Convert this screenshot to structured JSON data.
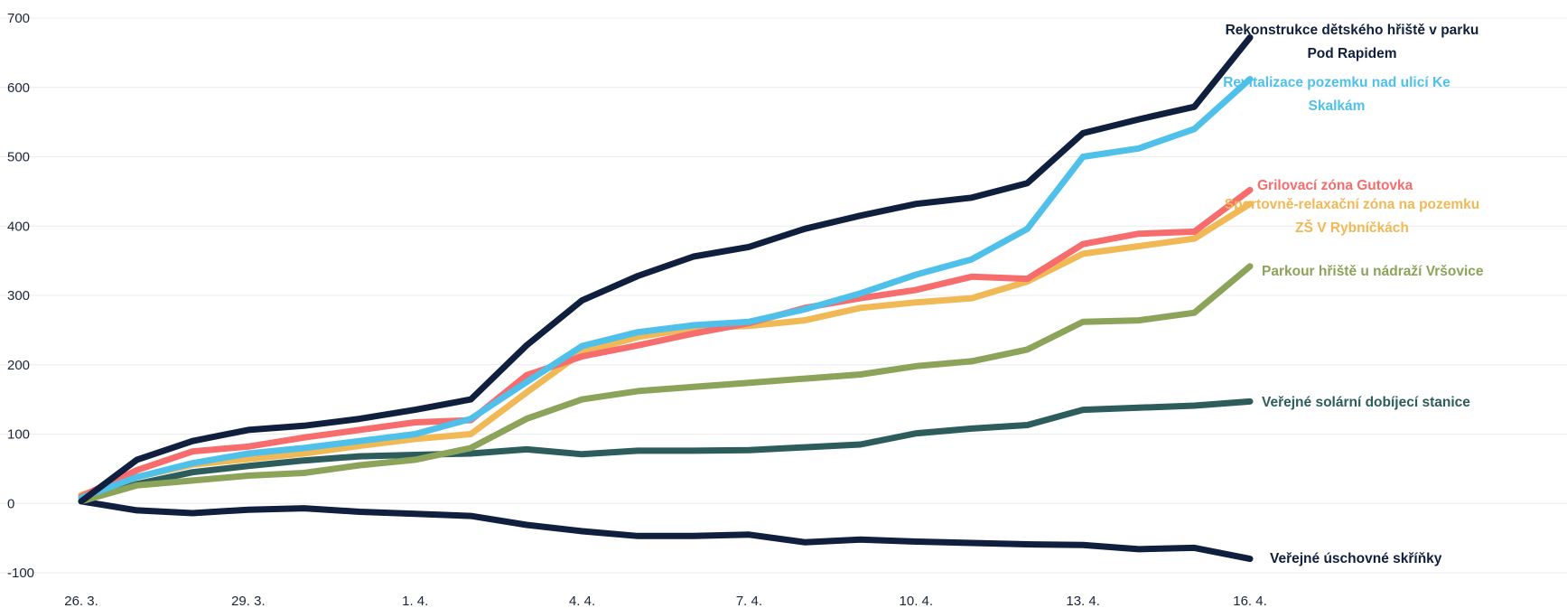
{
  "chart_data": {
    "type": "line",
    "title": "",
    "xlabel": "",
    "ylabel": "",
    "x": [
      "26. 3.",
      "27. 3.",
      "28. 3.",
      "29. 3.",
      "30. 3.",
      "31. 3.",
      "1. 4.",
      "2. 4.",
      "3. 4.",
      "4. 4.",
      "5. 4.",
      "6. 4.",
      "7. 4.",
      "8. 4.",
      "9. 4.",
      "10. 4.",
      "11. 4.",
      "12. 4.",
      "13. 4.",
      "14. 4.",
      "15. 4.",
      "16. 4."
    ],
    "x_tick_labels": [
      "26. 3.",
      "29. 3.",
      "1. 4.",
      "4. 4.",
      "7. 4.",
      "10. 4.",
      "13. 4.",
      "16. 4."
    ],
    "y_ticks": [
      -100,
      0,
      100,
      200,
      300,
      400,
      500,
      600,
      700
    ],
    "ylim": [
      -100,
      700
    ],
    "grid": true,
    "legend": "right",
    "series": [
      {
        "name": "Rekonstrukce dětského hřiště v parku Pod Rapidem",
        "label_lines": [
          "Rekonstrukce dětského hřiště v parku",
          "Pod Rapidem"
        ],
        "color": "#0f1f3d",
        "values": [
          3,
          63,
          90,
          106,
          112,
          122,
          135,
          150,
          228,
          293,
          328,
          356,
          370,
          396,
          415,
          432,
          441,
          462,
          534,
          554,
          572,
          672
        ]
      },
      {
        "name": "Revitalizace pozemku nad ulicí Ke Skalkám",
        "label_lines": [
          "Revitalizace pozemku nad ulicí Ke",
          "Skalkám"
        ],
        "color": "#4fc0ea",
        "values": [
          8,
          38,
          58,
          72,
          80,
          90,
          100,
          122,
          175,
          227,
          247,
          257,
          262,
          280,
          303,
          330,
          352,
          396,
          500,
          512,
          540,
          612
        ]
      },
      {
        "name": "Grilovací zóna Gutovka",
        "label_lines": [
          "Grilovací zóna Gutovka"
        ],
        "color": "#f76c6c",
        "values": [
          10,
          48,
          75,
          82,
          95,
          106,
          117,
          120,
          185,
          212,
          228,
          245,
          260,
          282,
          296,
          308,
          327,
          324,
          374,
          389,
          392,
          452
        ]
      },
      {
        "name": "Sportovně-relaxační zóna na pozemku ZŠ V Rybníčkách",
        "label_lines": [
          "Sportovně-relaxační zóna na pozemku",
          "ZŠ V Rybníčkách"
        ],
        "color": "#f0b956",
        "values": [
          12,
          38,
          56,
          64,
          72,
          83,
          93,
          100,
          160,
          218,
          240,
          253,
          256,
          264,
          282,
          290,
          296,
          320,
          360,
          371,
          382,
          432
        ]
      },
      {
        "name": "Parkour hřiště u nádraží Vršovice",
        "label_lines": [
          "Parkour hřiště u nádraží Vršovice"
        ],
        "color": "#8ca35a",
        "values": [
          3,
          26,
          33,
          40,
          44,
          55,
          63,
          80,
          122,
          150,
          162,
          168,
          174,
          180,
          186,
          198,
          205,
          222,
          262,
          264,
          275,
          342
        ]
      },
      {
        "name": "Veřejné solární dobíjecí stanice",
        "label_lines": [
          "Veřejné solární dobíjecí stanice"
        ],
        "color": "#2c5c5c",
        "values": [
          3,
          28,
          45,
          54,
          62,
          68,
          70,
          72,
          78,
          71,
          76,
          76,
          77,
          81,
          85,
          101,
          108,
          113,
          135,
          138,
          141,
          147
        ]
      },
      {
        "name": "Veřejné úschovné skříňky",
        "label_lines": [
          "Veřejné úschovné skříňky"
        ],
        "color": "#0f1f3d",
        "values": [
          3,
          -10,
          -14,
          -9,
          -7,
          -12,
          -15,
          -18,
          -31,
          -40,
          -47,
          -47,
          -45,
          -56,
          -52,
          -55,
          -57,
          -59,
          -60,
          -66,
          -64,
          -80
        ]
      }
    ]
  }
}
